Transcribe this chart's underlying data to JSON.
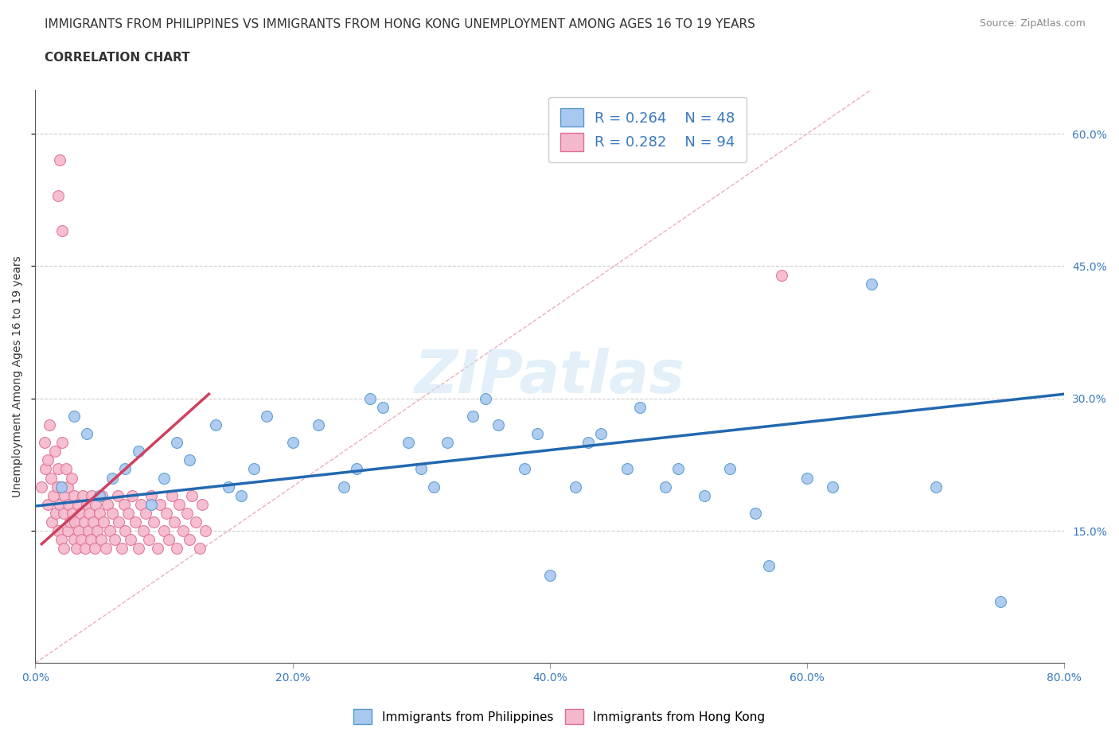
{
  "title_line1": "IMMIGRANTS FROM PHILIPPINES VS IMMIGRANTS FROM HONG KONG UNEMPLOYMENT AMONG AGES 16 TO 19 YEARS",
  "title_line2": "CORRELATION CHART",
  "source_text": "Source: ZipAtlas.com",
  "ylabel": "Unemployment Among Ages 16 to 19 years",
  "xlim": [
    0.0,
    0.8
  ],
  "ylim": [
    0.0,
    0.65
  ],
  "xticks": [
    0.0,
    0.2,
    0.4,
    0.6,
    0.8
  ],
  "xtick_labels": [
    "0.0%",
    "20.0%",
    "40.0%",
    "60.0%",
    "80.0%"
  ],
  "ytick_labels": [
    "15.0%",
    "30.0%",
    "45.0%",
    "60.0%"
  ],
  "ytick_vals": [
    0.15,
    0.3,
    0.45,
    0.6
  ],
  "watermark": "ZIPatlas",
  "philippines_color": "#a8c8f0",
  "philippines_edge": "#5599cc",
  "hongkong_color": "#f4b8cc",
  "hongkong_edge": "#e07090",
  "philippines_R": 0.264,
  "philippines_N": 48,
  "hongkong_R": 0.282,
  "hongkong_N": 94,
  "ph_line_color": "#2268b0",
  "hk_line_color": "#d04060",
  "diagonal_color": "#e8b0b8",
  "title_fontsize": 11,
  "subtitle_fontsize": 11,
  "axis_label_fontsize": 10,
  "tick_fontsize": 10,
  "legend_fontsize": 13,
  "dot_size": 100,
  "philippines_x": [
    0.02,
    0.03,
    0.04,
    0.05,
    0.06,
    0.07,
    0.08,
    0.09,
    0.1,
    0.11,
    0.12,
    0.14,
    0.15,
    0.16,
    0.17,
    0.18,
    0.2,
    0.22,
    0.24,
    0.25,
    0.26,
    0.27,
    0.29,
    0.3,
    0.31,
    0.32,
    0.34,
    0.35,
    0.36,
    0.38,
    0.39,
    0.4,
    0.42,
    0.43,
    0.44,
    0.46,
    0.47,
    0.49,
    0.5,
    0.52,
    0.54,
    0.56,
    0.57,
    0.6,
    0.62,
    0.65,
    0.7,
    0.75
  ],
  "philippines_y": [
    0.2,
    0.28,
    0.26,
    0.19,
    0.21,
    0.22,
    0.24,
    0.18,
    0.21,
    0.25,
    0.23,
    0.27,
    0.2,
    0.19,
    0.22,
    0.28,
    0.25,
    0.27,
    0.2,
    0.22,
    0.3,
    0.29,
    0.25,
    0.22,
    0.2,
    0.25,
    0.28,
    0.3,
    0.27,
    0.22,
    0.26,
    0.1,
    0.2,
    0.25,
    0.26,
    0.22,
    0.29,
    0.2,
    0.22,
    0.19,
    0.22,
    0.17,
    0.11,
    0.21,
    0.2,
    0.43,
    0.2,
    0.07
  ],
  "hongkong_x": [
    0.005,
    0.007,
    0.008,
    0.01,
    0.01,
    0.011,
    0.012,
    0.013,
    0.014,
    0.015,
    0.016,
    0.017,
    0.018,
    0.018,
    0.019,
    0.02,
    0.02,
    0.021,
    0.022,
    0.022,
    0.023,
    0.024,
    0.025,
    0.025,
    0.026,
    0.027,
    0.028,
    0.029,
    0.03,
    0.03,
    0.031,
    0.032,
    0.033,
    0.034,
    0.035,
    0.036,
    0.037,
    0.038,
    0.039,
    0.04,
    0.041,
    0.042,
    0.043,
    0.044,
    0.045,
    0.046,
    0.047,
    0.048,
    0.05,
    0.051,
    0.052,
    0.053,
    0.055,
    0.056,
    0.058,
    0.06,
    0.062,
    0.064,
    0.065,
    0.067,
    0.069,
    0.07,
    0.072,
    0.074,
    0.075,
    0.078,
    0.08,
    0.082,
    0.084,
    0.086,
    0.088,
    0.09,
    0.092,
    0.095,
    0.097,
    0.1,
    0.102,
    0.104,
    0.106,
    0.108,
    0.11,
    0.112,
    0.115,
    0.118,
    0.12,
    0.122,
    0.125,
    0.128,
    0.13,
    0.132,
    0.019,
    0.018,
    0.58,
    0.021
  ],
  "hongkong_y": [
    0.2,
    0.25,
    0.22,
    0.18,
    0.23,
    0.27,
    0.21,
    0.16,
    0.19,
    0.24,
    0.17,
    0.2,
    0.15,
    0.22,
    0.18,
    0.14,
    0.2,
    0.25,
    0.17,
    0.13,
    0.19,
    0.22,
    0.15,
    0.2,
    0.18,
    0.16,
    0.21,
    0.17,
    0.14,
    0.19,
    0.16,
    0.13,
    0.18,
    0.15,
    0.17,
    0.14,
    0.19,
    0.16,
    0.13,
    0.18,
    0.15,
    0.17,
    0.14,
    0.19,
    0.16,
    0.13,
    0.18,
    0.15,
    0.17,
    0.14,
    0.19,
    0.16,
    0.13,
    0.18,
    0.15,
    0.17,
    0.14,
    0.19,
    0.16,
    0.13,
    0.18,
    0.15,
    0.17,
    0.14,
    0.19,
    0.16,
    0.13,
    0.18,
    0.15,
    0.17,
    0.14,
    0.19,
    0.16,
    0.13,
    0.18,
    0.15,
    0.17,
    0.14,
    0.19,
    0.16,
    0.13,
    0.18,
    0.15,
    0.17,
    0.14,
    0.19,
    0.16,
    0.13,
    0.18,
    0.15,
    0.57,
    0.53,
    0.44,
    0.49
  ]
}
